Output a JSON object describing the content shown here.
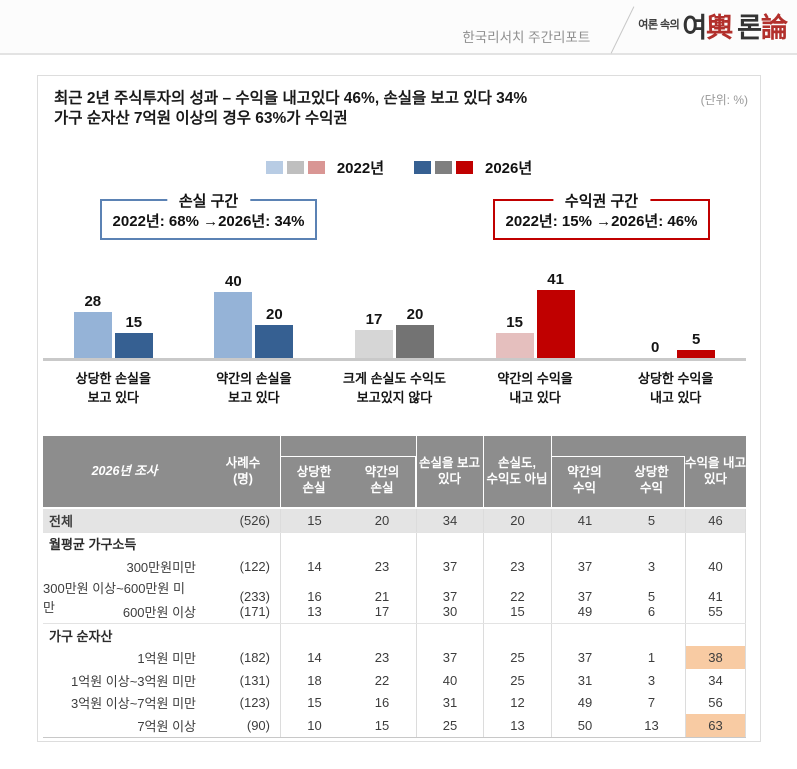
{
  "topbar": {
    "report_title": "한국리서치 주간리포트",
    "logo_prefix": "여론 속의",
    "logo_chars": [
      {
        "t": "여",
        "red": false
      },
      {
        "t": "輿",
        "red": true
      },
      {
        "t": "론",
        "red": false
      },
      {
        "t": "論",
        "red": true
      }
    ]
  },
  "card": {
    "title_line1": "최근 2년 주식투자의 성과 – 수익을 내고있다 46%, 손실을 보고 있다 34%",
    "title_line2": "가구 순자산 7억원 이상의 경우 63%가 수익권",
    "unit_note": "(단위: %)"
  },
  "chart_data": {
    "type": "bar",
    "unit": "%",
    "categories": [
      "상당한 손실을 보고 있다",
      "약간의 손실을 보고 있다",
      "크게 손실도 수익도 보고있지 않다",
      "약간의 수익을 내고 있다",
      "상당한 수익을 내고 있다"
    ],
    "category_lines": [
      [
        "상당한 손실을",
        "보고 있다"
      ],
      [
        "약간의 손실을",
        "보고 있다"
      ],
      [
        "크게 손실도 수익도",
        "보고있지 않다"
      ],
      [
        "약간의 수익을",
        "내고 있다"
      ],
      [
        "상당한 수익을",
        "내고 있다"
      ]
    ],
    "series": [
      {
        "name": "2022년",
        "values": [
          28,
          40,
          17,
          15,
          0
        ],
        "colors": [
          "#95b3d7",
          "#95b3d7",
          "#d6d6d6",
          "#e5bfbe",
          "#e5bfbe"
        ],
        "legend_swatches": [
          "#b8cce4",
          "#bfbfbf",
          "#d99694"
        ]
      },
      {
        "name": "2026년",
        "values": [
          15,
          20,
          20,
          41,
          5
        ],
        "colors": [
          "#366092",
          "#366092",
          "#737373",
          "#c00000",
          "#c00000"
        ],
        "legend_swatches": [
          "#366092",
          "#7f7f7f",
          "#c00000"
        ]
      }
    ],
    "ylim": [
      0,
      45
    ],
    "value_labels": true,
    "legend_position": "top",
    "axis_color": "#c9c9c9",
    "annotations": [
      {
        "title": "손실 구간",
        "text": "2022년: 68% →2026년: 34%",
        "border_color": "#5b82b4"
      },
      {
        "title": "수익권 구간",
        "text": "2022년: 15% →2026년: 46%",
        "border_color": "#c00000"
      }
    ]
  },
  "table": {
    "header_lines": [
      [
        "2026년 조사"
      ],
      [
        "사례수",
        "(명)"
      ],
      [
        "상당한",
        "손실"
      ],
      [
        "약간의",
        "손실"
      ],
      [
        "손실을 보고",
        "있다"
      ],
      [
        "손실도,",
        "수익도 아님"
      ],
      [
        "약간의",
        "수익"
      ],
      [
        "상당한",
        "수익"
      ],
      [
        "수익을 내고",
        "있다"
      ]
    ],
    "header_bg": "#8d8d8d",
    "total_row_bg": "#e4e4e4",
    "highlight_color": "#f8cba3",
    "rows": [
      {
        "type": "total",
        "label": "전체",
        "n": "(526)",
        "values": [
          "15",
          "20",
          "34",
          "20",
          "41",
          "5",
          "46"
        ]
      },
      {
        "type": "section",
        "label": "월평균 가구소득"
      },
      {
        "type": "data",
        "label": "300만원미만",
        "n": "(122)",
        "values": [
          "14",
          "23",
          "37",
          "23",
          "37",
          "3",
          "40"
        ]
      },
      {
        "type": "data",
        "label": "300만원 이상~600만원 미만",
        "n": "(233)",
        "values": [
          "16",
          "21",
          "37",
          "22",
          "37",
          "5",
          "41"
        ]
      },
      {
        "type": "data",
        "label": "600만원 이상",
        "n": "(171)",
        "values": [
          "13",
          "17",
          "30",
          "15",
          "49",
          "6",
          "55"
        ]
      },
      {
        "type": "section",
        "label": "가구 순자산"
      },
      {
        "type": "data",
        "label": "1억원 미만",
        "n": "(182)",
        "values": [
          "14",
          "23",
          "37",
          "25",
          "37",
          "1",
          "38"
        ],
        "highlight": [
          6
        ]
      },
      {
        "type": "data",
        "label": "1억원 이상~3억원 미만",
        "n": "(131)",
        "values": [
          "18",
          "22",
          "40",
          "25",
          "31",
          "3",
          "34"
        ]
      },
      {
        "type": "data",
        "label": "3억원 이상~7억원 미만",
        "n": "(123)",
        "values": [
          "15",
          "16",
          "31",
          "12",
          "49",
          "7",
          "56"
        ]
      },
      {
        "type": "data",
        "label": "7억원 이상",
        "n": "(90)",
        "values": [
          "10",
          "15",
          "25",
          "13",
          "50",
          "13",
          "63"
        ],
        "highlight": [
          6
        ]
      }
    ]
  }
}
